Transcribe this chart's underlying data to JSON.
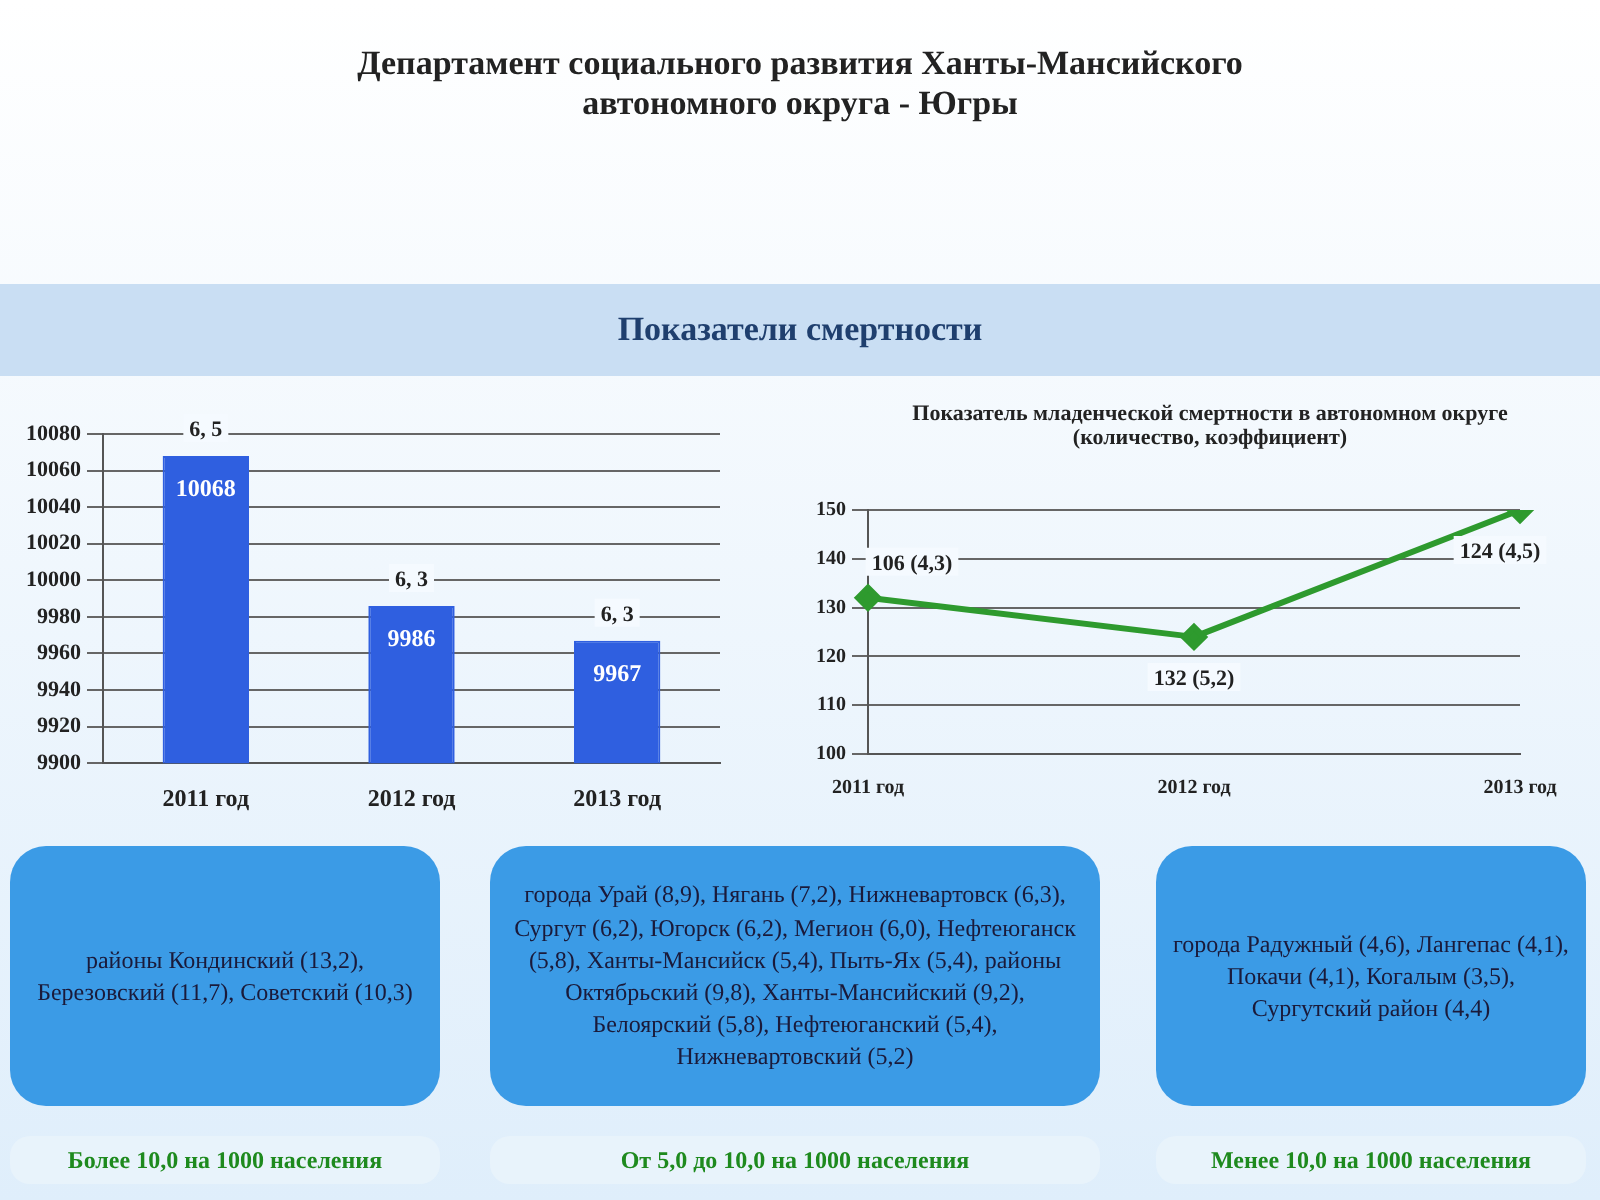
{
  "chart_data": [
    {
      "type": "other",
      "title": "Департамент социального развития Ханты-Мансийского автономного округа - Югры",
      "subtitle": "Показатели смертности"
    },
    {
      "type": "bar",
      "categories": [
        "2011 год",
        "2012 год",
        "2013 год"
      ],
      "values": [
        10068,
        9986,
        9967
      ],
      "color": "#2f5fe0",
      "ylim": [
        9900,
        10080
      ],
      "yticks": [
        9900,
        9920,
        9940,
        9960,
        9980,
        10000,
        10020,
        10040,
        10060,
        10080
      ],
      "grid": "y",
      "data_labels": true,
      "legend": false,
      "annotations": [
        {
          "text": "6, 5",
          "x": "2011 год",
          "y": 10068
        },
        {
          "text": "6, 3",
          "x": "2012 год",
          "y": 9986
        },
        {
          "text": "6, 3",
          "x": "2013 год",
          "y": 9967
        }
      ]
    },
    {
      "type": "line",
      "title": "Показатель младенческой смертности в автономном округе (количество, коэффициент)",
      "categories": [
        "2011 год",
        "2012 год",
        "2013 год"
      ],
      "values": [
        132,
        124,
        150
      ],
      "color": "#2e9a2e",
      "ylim": [
        100,
        150
      ],
      "yticks": [
        100,
        110,
        120,
        130,
        140,
        150
      ],
      "grid": "y",
      "marker": "diamond",
      "line_style": "solid",
      "legend": false,
      "annotations": [
        "106 (4,3)",
        "132 (5,2)",
        "124 (4,5)"
      ]
    },
    {
      "type": "other",
      "annotations": [
        "районы Кондинский (13,2), Березовский (11,7), Советский (10,3)",
        "города Урай (8,9), Нягань (7,2), Нижневартовск (6,3), Сургут (6,2), Югорск (6,2), Мегион (6,0), Нефтеюганск (5,8), Ханты-Мансийск (5,4), Пыть-Ях (5,4), районы Октябрьский (9,8), Ханты-Мансийский (9,2), Белоярский (5,8), Нефтеюганский (5,4), Нижневартовский (5,2)",
        "города Радужный (4,6), Лангепас (4,1), Покачи (4,1), Когалым (3,5), Сургутский район (4,4)",
        "Более 10,0 на 1000 населения",
        "От  5,0 до 10,0 на 1000 населения",
        "Менее 10,0 на 1000 населения"
      ]
    }
  ]
}
